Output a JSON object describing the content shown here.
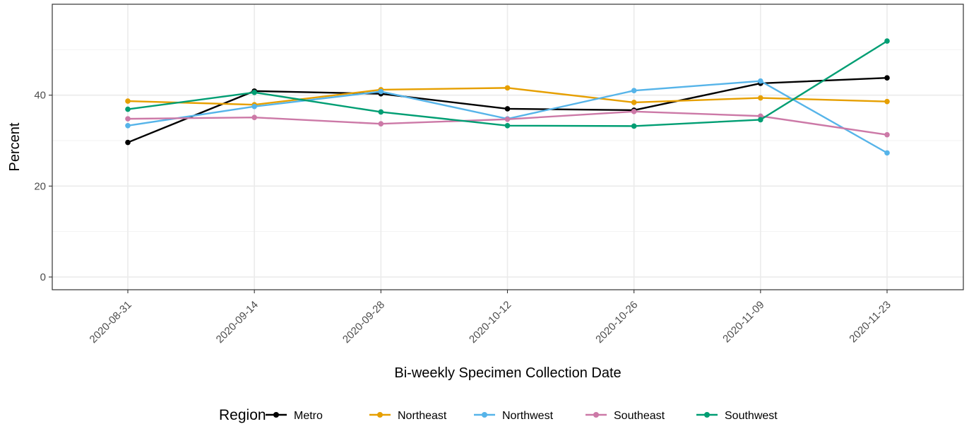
{
  "chart_data": {
    "type": "line",
    "xlabel": "Bi-weekly Specimen Collection Date",
    "ylabel": "Percent",
    "categories": [
      "2020-08-31",
      "2020-09-14",
      "2020-09-28",
      "2020-10-12",
      "2020-10-26",
      "2020-11-09",
      "2020-11-23"
    ],
    "ylim": [
      -2.8,
      60
    ],
    "yticks": [
      0,
      20,
      40
    ],
    "grid": true,
    "legend": {
      "title": "Region",
      "position": "bottom"
    },
    "series": [
      {
        "name": "Metro",
        "color": "#000000",
        "values": [
          29.6,
          40.9,
          40.3,
          37.0,
          36.7,
          42.6,
          43.8
        ]
      },
      {
        "name": "Northeast",
        "color": "#E69F00",
        "values": [
          38.7,
          37.9,
          41.2,
          41.6,
          38.4,
          39.4,
          38.6
        ]
      },
      {
        "name": "Northwest",
        "color": "#56B4E9",
        "values": [
          33.3,
          37.5,
          40.8,
          34.8,
          41.0,
          43.1,
          27.3
        ]
      },
      {
        "name": "Southeast",
        "color": "#CC79A7",
        "values": [
          34.8,
          35.1,
          33.7,
          34.7,
          36.4,
          35.4,
          31.3
        ]
      },
      {
        "name": "Southwest",
        "color": "#009E73",
        "values": [
          36.9,
          40.6,
          36.3,
          33.3,
          33.2,
          34.6,
          51.9
        ]
      }
    ]
  }
}
